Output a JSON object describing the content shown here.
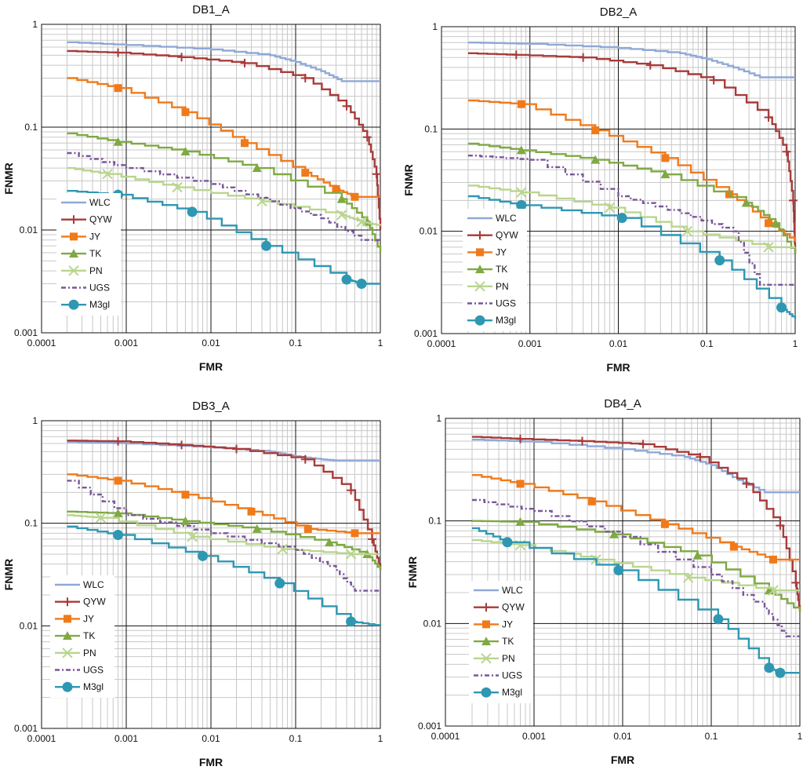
{
  "figure": {
    "x_ticks": [
      "0.0001",
      "0.001",
      "0.01",
      "0.1",
      "1"
    ],
    "y_ticks": [
      "0.001",
      "0.01",
      "0.1",
      "1"
    ],
    "xlabel": "FMR",
    "ylabel": "FNMR",
    "legend": [
      "WLC",
      "QYW",
      "JY",
      "TK",
      "PN",
      "UGS",
      "M3gl"
    ]
  },
  "series_styles": [
    {
      "name": "WLC",
      "color": "#8FA9D6",
      "marker": "none",
      "dash": ""
    },
    {
      "name": "QYW",
      "color": "#A83B3A",
      "marker": "plus",
      "dash": ""
    },
    {
      "name": "JY",
      "color": "#F07A1A",
      "marker": "square",
      "dash": ""
    },
    {
      "name": "TK",
      "color": "#7FA943",
      "marker": "triangle",
      "dash": ""
    },
    {
      "name": "PN",
      "color": "#B9D58E",
      "marker": "x",
      "dash": ""
    },
    {
      "name": "UGS",
      "color": "#7A5699",
      "marker": "none",
      "dash": "6,3,2,3"
    },
    {
      "name": "M3gl",
      "color": "#2F97B2",
      "marker": "circle",
      "dash": ""
    }
  ],
  "chart_data": [
    {
      "type": "line",
      "title": "DB1_A",
      "xlabel": "FMR",
      "ylabel": "FNMR",
      "x_scale": "log",
      "y_scale": "log",
      "xlim": [
        0.0001,
        1
      ],
      "ylim": [
        0.001,
        1
      ],
      "grid": true,
      "legend_position": "bottom-left",
      "series": [
        {
          "name": "WLC",
          "x": [
            0.0002,
            0.001,
            0.01,
            0.05,
            0.1,
            0.2,
            0.35,
            1
          ],
          "y": [
            0.67,
            0.63,
            0.57,
            0.5,
            0.43,
            0.35,
            0.28,
            0.28
          ]
        },
        {
          "name": "QYW",
          "x": [
            0.0002,
            0.0008,
            0.0045,
            0.025,
            0.13,
            0.4,
            0.7,
            0.9,
            1
          ],
          "y": [
            0.55,
            0.53,
            0.48,
            0.42,
            0.3,
            0.16,
            0.08,
            0.035,
            0.01
          ]
        },
        {
          "name": "JY",
          "x": [
            0.0002,
            0.0008,
            0.005,
            0.025,
            0.13,
            0.3,
            0.5,
            1
          ],
          "y": [
            0.3,
            0.24,
            0.14,
            0.07,
            0.036,
            0.025,
            0.021,
            0.021
          ]
        },
        {
          "name": "TK",
          "x": [
            0.0002,
            0.0008,
            0.005,
            0.035,
            0.35,
            0.7,
            1
          ],
          "y": [
            0.087,
            0.072,
            0.058,
            0.04,
            0.02,
            0.012,
            0.006
          ]
        },
        {
          "name": "PN",
          "x": [
            0.0002,
            0.0006,
            0.004,
            0.04,
            0.35,
            0.6,
            1
          ],
          "y": [
            0.04,
            0.035,
            0.026,
            0.019,
            0.014,
            0.012,
            0.011
          ]
        },
        {
          "name": "UGS",
          "x": [
            0.0002,
            0.001,
            0.01,
            0.05,
            0.2,
            0.6,
            1
          ],
          "y": [
            0.056,
            0.04,
            0.028,
            0.019,
            0.013,
            0.008,
            0.008
          ]
        },
        {
          "name": "M3gl",
          "x": [
            0.0002,
            0.0008,
            0.006,
            0.045,
            0.4,
            0.6,
            1
          ],
          "y": [
            0.024,
            0.022,
            0.015,
            0.007,
            0.0033,
            0.003,
            0.003
          ]
        }
      ]
    },
    {
      "type": "line",
      "title": "DB2_A",
      "xlabel": "FMR",
      "ylabel": "FNMR",
      "x_scale": "log",
      "y_scale": "log",
      "xlim": [
        0.0001,
        1
      ],
      "ylim": [
        0.001,
        1
      ],
      "grid": true,
      "legend_position": "bottom-left",
      "series": [
        {
          "name": "WLC",
          "x": [
            0.0002,
            0.001,
            0.01,
            0.05,
            0.1,
            0.2,
            0.4,
            1
          ],
          "y": [
            0.7,
            0.68,
            0.62,
            0.55,
            0.48,
            0.4,
            0.32,
            0.32
          ]
        },
        {
          "name": "QYW",
          "x": [
            0.0002,
            0.0007,
            0.004,
            0.023,
            0.12,
            0.5,
            0.8,
            0.95,
            1
          ],
          "y": [
            0.55,
            0.53,
            0.5,
            0.42,
            0.3,
            0.13,
            0.06,
            0.02,
            0.006
          ]
        },
        {
          "name": "JY",
          "x": [
            0.0002,
            0.0008,
            0.0055,
            0.034,
            0.18,
            0.5,
            1
          ],
          "y": [
            0.19,
            0.175,
            0.097,
            0.052,
            0.023,
            0.012,
            0.008
          ]
        },
        {
          "name": "TK",
          "x": [
            0.0002,
            0.0008,
            0.0055,
            0.034,
            0.28,
            0.6,
            1
          ],
          "y": [
            0.072,
            0.062,
            0.05,
            0.036,
            0.019,
            0.012,
            0.006
          ]
        },
        {
          "name": "PN",
          "x": [
            0.0002,
            0.0008,
            0.008,
            0.06,
            0.5,
            1
          ],
          "y": [
            0.028,
            0.024,
            0.017,
            0.01,
            0.007,
            0.007
          ]
        },
        {
          "name": "UGS",
          "x": [
            0.0002,
            0.001,
            0.01,
            0.05,
            0.2,
            0.4,
            1
          ],
          "y": [
            0.055,
            0.05,
            0.022,
            0.015,
            0.01,
            0.003,
            0.003
          ]
        },
        {
          "name": "M3gl",
          "x": [
            0.0002,
            0.0008,
            0.011,
            0.14,
            0.7,
            1
          ],
          "y": [
            0.022,
            0.018,
            0.0135,
            0.0052,
            0.0018,
            0.0014
          ]
        }
      ]
    },
    {
      "type": "line",
      "title": "DB3_A",
      "xlabel": "FMR",
      "ylabel": "FNMR",
      "x_scale": "log",
      "y_scale": "log",
      "xlim": [
        0.0001,
        1
      ],
      "ylim": [
        0.001,
        1
      ],
      "grid": true,
      "legend_position": "bottom-left",
      "series": [
        {
          "name": "WLC",
          "x": [
            0.0002,
            0.001,
            0.01,
            0.05,
            0.1,
            0.2,
            0.3,
            1
          ],
          "y": [
            0.62,
            0.6,
            0.55,
            0.5,
            0.45,
            0.42,
            0.41,
            0.41
          ]
        },
        {
          "name": "QYW",
          "x": [
            0.0002,
            0.0008,
            0.0045,
            0.02,
            0.13,
            0.45,
            0.8,
            1
          ],
          "y": [
            0.64,
            0.63,
            0.58,
            0.53,
            0.42,
            0.21,
            0.07,
            0.035
          ]
        },
        {
          "name": "JY",
          "x": [
            0.0002,
            0.0008,
            0.005,
            0.03,
            0.14,
            0.5,
            1
          ],
          "y": [
            0.3,
            0.26,
            0.19,
            0.13,
            0.088,
            0.08,
            0.08
          ]
        },
        {
          "name": "TK",
          "x": [
            0.0002,
            0.0008,
            0.005,
            0.035,
            0.25,
            0.7,
            1
          ],
          "y": [
            0.13,
            0.125,
            0.105,
            0.088,
            0.065,
            0.05,
            0.035
          ]
        },
        {
          "name": "PN",
          "x": [
            0.0002,
            0.0005,
            0.006,
            0.07,
            0.45,
            1
          ],
          "y": [
            0.12,
            0.113,
            0.074,
            0.056,
            0.05,
            0.05
          ]
        },
        {
          "name": "UGS",
          "x": [
            0.0002,
            0.001,
            0.01,
            0.1,
            0.3,
            0.5,
            1
          ],
          "y": [
            0.26,
            0.12,
            0.08,
            0.055,
            0.035,
            0.022,
            0.022
          ]
        },
        {
          "name": "M3gl",
          "x": [
            0.0002,
            0.0008,
            0.008,
            0.065,
            0.45,
            1
          ],
          "y": [
            0.093,
            0.077,
            0.048,
            0.026,
            0.011,
            0.01
          ]
        }
      ]
    },
    {
      "type": "line",
      "title": "DB4_A",
      "xlabel": "FMR",
      "ylabel": "FNMR",
      "x_scale": "log",
      "y_scale": "log",
      "xlim": [
        0.0001,
        1
      ],
      "ylim": [
        0.001,
        1
      ],
      "grid": true,
      "legend_position": "bottom-left",
      "series": [
        {
          "name": "WLC",
          "x": [
            0.0002,
            0.001,
            0.01,
            0.05,
            0.1,
            0.2,
            0.4,
            1
          ],
          "y": [
            0.62,
            0.59,
            0.5,
            0.42,
            0.35,
            0.25,
            0.19,
            0.19
          ]
        },
        {
          "name": "QYW",
          "x": [
            0.0002,
            0.0007,
            0.0035,
            0.017,
            0.075,
            0.25,
            0.6,
            0.9,
            1
          ],
          "y": [
            0.66,
            0.63,
            0.6,
            0.56,
            0.42,
            0.23,
            0.09,
            0.025,
            0.013
          ]
        },
        {
          "name": "JY",
          "x": [
            0.0002,
            0.0007,
            0.0045,
            0.03,
            0.18,
            0.5,
            1
          ],
          "y": [
            0.28,
            0.23,
            0.155,
            0.093,
            0.056,
            0.042,
            0.042
          ]
        },
        {
          "name": "TK",
          "x": [
            0.0002,
            0.0007,
            0.008,
            0.07,
            0.45,
            1
          ],
          "y": [
            0.1,
            0.098,
            0.074,
            0.046,
            0.021,
            0.013
          ]
        },
        {
          "name": "PN",
          "x": [
            0.0002,
            0.0007,
            0.005,
            0.055,
            0.5,
            1
          ],
          "y": [
            0.065,
            0.058,
            0.042,
            0.028,
            0.021,
            0.021
          ]
        },
        {
          "name": "UGS",
          "x": [
            0.0002,
            0.001,
            0.01,
            0.1,
            0.4,
            0.7,
            1
          ],
          "y": [
            0.16,
            0.125,
            0.07,
            0.03,
            0.014,
            0.0075,
            0.0075
          ]
        },
        {
          "name": "M3gl",
          "x": [
            0.0002,
            0.0005,
            0.009,
            0.12,
            0.45,
            0.6,
            1
          ],
          "y": [
            0.085,
            0.062,
            0.033,
            0.011,
            0.0037,
            0.0033,
            0.0033
          ]
        }
      ]
    }
  ]
}
